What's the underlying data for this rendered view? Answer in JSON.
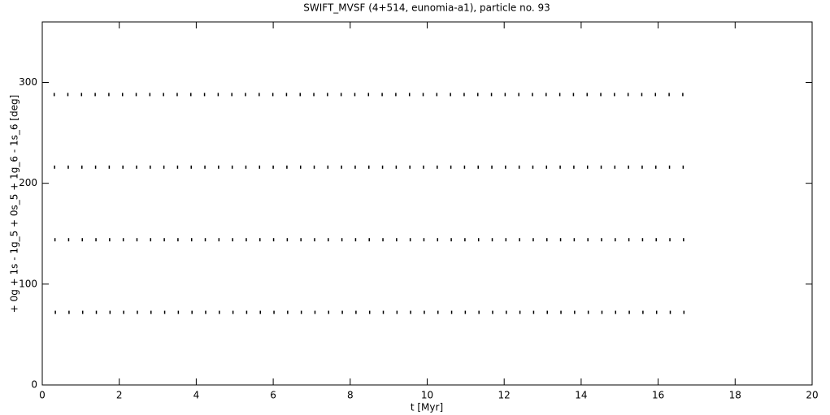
{
  "chart_data": {
    "type": "scatter",
    "title": "SWIFT_MVSF (4+514, eunomia-a1), particle no. 93",
    "x_label": "t [Myr]",
    "y_label": "+ 0g + 1s - 1g_5 + 0s_5 + 1g_6 - 1s_6 [deg]",
    "color": "#000000",
    "xlim": [
      0,
      20
    ],
    "ylim": [
      0,
      360
    ],
    "xticks": [
      0,
      2,
      4,
      6,
      8,
      10,
      12,
      14,
      16,
      18,
      20
    ],
    "yticks": [
      0,
      100,
      200,
      300
    ],
    "x": [
      0.31,
      0.32,
      0.33,
      0.34,
      0.665,
      0.675,
      0.685,
      0.695,
      1.02,
      1.03,
      1.04,
      1.05,
      1.375,
      1.385,
      1.395,
      1.405,
      1.73,
      1.74,
      1.75,
      1.76,
      2.085,
      2.095,
      2.105,
      2.115,
      2.44,
      2.45,
      2.46,
      2.47,
      2.795,
      2.805,
      2.815,
      2.825,
      3.15,
      3.16,
      3.17,
      3.18,
      3.505,
      3.515,
      3.525,
      3.535,
      3.86,
      3.87,
      3.88,
      3.89,
      4.215,
      4.225,
      4.235,
      4.245,
      4.57,
      4.58,
      4.59,
      4.6,
      4.925,
      4.935,
      4.945,
      4.955,
      5.28,
      5.29,
      5.3,
      5.31,
      5.635,
      5.645,
      5.655,
      5.665,
      5.99,
      6,
      6.01,
      6.02,
      6.345,
      6.355,
      6.365,
      6.375,
      6.7,
      6.71,
      6.72,
      6.73,
      7.055,
      7.065,
      7.075,
      7.085,
      7.41,
      7.42,
      7.43,
      7.44,
      7.765,
      7.775,
      7.785,
      7.795,
      8.12,
      8.13,
      8.14,
      8.15,
      8.475,
      8.485,
      8.495,
      8.505,
      8.83,
      8.84,
      8.85,
      8.86,
      9.185,
      9.195,
      9.205,
      9.215,
      9.54,
      9.55,
      9.56,
      9.57,
      9.895,
      9.905,
      9.915,
      9.925,
      10.25,
      10.26,
      10.27,
      10.28,
      10.605,
      10.615,
      10.625,
      10.635,
      10.96,
      10.97,
      10.98,
      10.99,
      11.315,
      11.325,
      11.335,
      11.345,
      11.67,
      11.68,
      11.69,
      11.7,
      12.025,
      12.035,
      12.045,
      12.055,
      12.38,
      12.39,
      12.4,
      12.41,
      12.735,
      12.745,
      12.755,
      12.765,
      13.09,
      13.1,
      13.11,
      13.12,
      13.445,
      13.455,
      13.465,
      13.475,
      13.8,
      13.81,
      13.82,
      13.83,
      14.155,
      14.165,
      14.175,
      14.185,
      14.51,
      14.52,
      14.53,
      14.54,
      14.865,
      14.875,
      14.885,
      14.895,
      15.22,
      15.23,
      15.24,
      15.25,
      15.575,
      15.585,
      15.595,
      15.605,
      15.93,
      15.94,
      15.95,
      15.96,
      16.285,
      16.295,
      16.305,
      16.315,
      16.64,
      16.65,
      16.66,
      16.67
    ],
    "y": [
      288,
      216,
      144,
      72,
      288,
      216,
      144,
      72,
      288,
      216,
      144,
      72,
      288,
      216,
      144,
      72,
      288,
      216,
      144,
      72,
      288,
      216,
      144,
      72,
      288,
      216,
      144,
      72,
      288,
      216,
      144,
      72,
      288,
      216,
      144,
      72,
      288,
      216,
      144,
      72,
      288,
      216,
      144,
      72,
      288,
      216,
      144,
      72,
      288,
      216,
      144,
      72,
      288,
      216,
      144,
      72,
      288,
      216,
      144,
      72,
      288,
      216,
      144,
      72,
      288,
      216,
      144,
      72,
      288,
      216,
      144,
      72,
      288,
      216,
      144,
      72,
      288,
      216,
      144,
      72,
      288,
      216,
      144,
      72,
      288,
      216,
      144,
      72,
      288,
      216,
      144,
      72,
      288,
      216,
      144,
      72,
      288,
      216,
      144,
      72,
      288,
      216,
      144,
      72,
      288,
      216,
      144,
      72,
      288,
      216,
      144,
      72,
      288,
      216,
      144,
      72,
      288,
      216,
      144,
      72,
      288,
      216,
      144,
      72,
      288,
      216,
      144,
      72,
      288,
      216,
      144,
      72,
      288,
      216,
      144,
      72,
      288,
      216,
      144,
      72,
      288,
      216,
      144,
      72,
      288,
      216,
      144,
      72,
      288,
      216,
      144,
      72,
      288,
      216,
      144,
      72,
      288,
      216,
      144,
      72,
      288,
      216,
      144,
      72,
      288,
      216,
      144,
      72,
      288,
      216,
      144,
      72,
      288,
      216,
      144,
      72,
      288,
      216,
      144,
      72,
      288,
      216,
      144,
      72,
      288,
      216,
      144,
      72
    ]
  }
}
